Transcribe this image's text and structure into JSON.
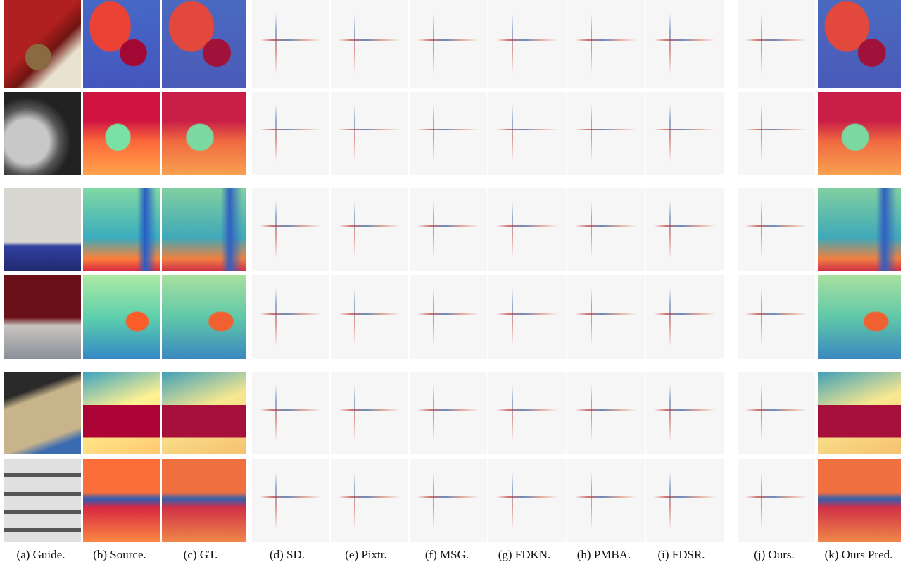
{
  "captions": [
    "(a) Guide.",
    "(b) Source.",
    "(c) GT.",
    "(d) SD.",
    "(e) Pixtr.",
    "(f) MSG.",
    "(g) FDKN.",
    "(h) PMBA.",
    "(i) FDSR.",
    "(j) Ours.",
    "(k) Ours Pred."
  ]
}
